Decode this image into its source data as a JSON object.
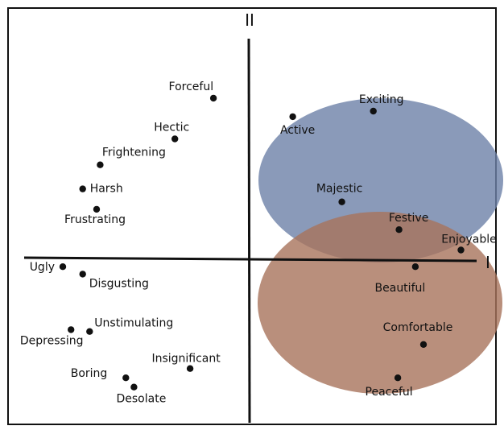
{
  "axes": {
    "horizontal_label": "I",
    "vertical_label": "II"
  },
  "regions": [
    {
      "id": "upper-right-ellipse",
      "color": "#6d81a7",
      "opacity": 0.8
    },
    {
      "id": "lower-right-ellipse",
      "color": "#a8735b",
      "opacity": 0.8
    }
  ],
  "colors": {
    "line": "#111111",
    "point": "#111111"
  },
  "points": [
    {
      "label": "Forceful",
      "x": -0.31,
      "y": 0.87
    },
    {
      "label": "Hectic",
      "x": -0.64,
      "y": 0.65
    },
    {
      "label": "Frightening",
      "x": -1.28,
      "y": 0.51
    },
    {
      "label": "Harsh",
      "x": -1.43,
      "y": 0.38
    },
    {
      "label": "Frustrating",
      "x": -1.31,
      "y": 0.27
    },
    {
      "label": "Exciting",
      "x": 1.06,
      "y": 0.8
    },
    {
      "label": "Active",
      "x": 0.37,
      "y": 0.77
    },
    {
      "label": "Majestic",
      "x": 0.79,
      "y": 0.31
    },
    {
      "label": "Festive",
      "x": 1.28,
      "y": 0.16
    },
    {
      "label": "Enjoyable",
      "x": 1.81,
      "y": 0.05
    },
    {
      "label": "Ugly",
      "x": -1.6,
      "y": -0.04
    },
    {
      "label": "Disgusting",
      "x": -1.43,
      "y": -0.08
    },
    {
      "label": "Beautiful",
      "x": 1.42,
      "y": -0.04
    },
    {
      "label": "Unstimulating",
      "x": -1.37,
      "y": -0.39
    },
    {
      "label": "Depressing",
      "x": -1.53,
      "y": -0.38
    },
    {
      "label": "Insignificant",
      "x": -0.51,
      "y": -0.59
    },
    {
      "label": "Boring",
      "x": -1.06,
      "y": -0.64
    },
    {
      "label": "Desolate",
      "x": -0.99,
      "y": -0.69
    },
    {
      "label": "Comfortable",
      "x": 1.49,
      "y": -0.46
    },
    {
      "label": "Peaceful",
      "x": 1.27,
      "y": -0.64
    }
  ]
}
